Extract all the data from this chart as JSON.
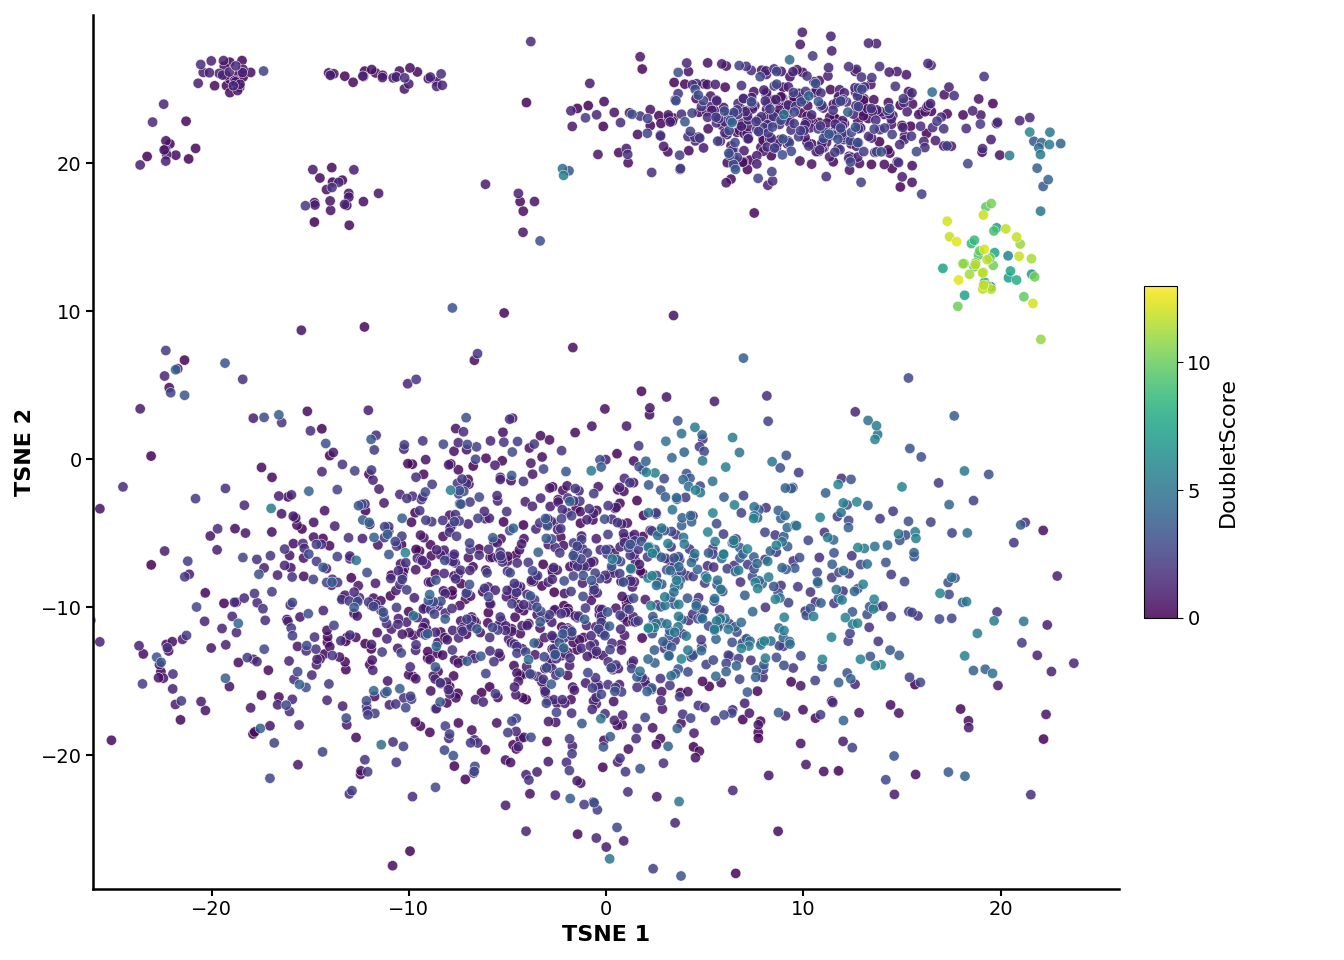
{
  "title": "",
  "xlabel": "TSNE 1",
  "ylabel": "TSNE 2",
  "xlim": [
    -26,
    26
  ],
  "ylim": [
    -29,
    30
  ],
  "xticks": [
    -20,
    -10,
    0,
    10,
    20
  ],
  "yticks": [
    -20,
    -10,
    0,
    10,
    20
  ],
  "colorbar_label": "DoubletScore",
  "colorbar_ticks": [
    0,
    5,
    10
  ],
  "vmin": 0,
  "vmax": 13,
  "point_size": 55,
  "alpha": 0.85,
  "cmap": "viridis",
  "background_color": "#ffffff",
  "axis_color": "#000000",
  "font_size": 14,
  "label_font_size": 16,
  "seed": 42
}
